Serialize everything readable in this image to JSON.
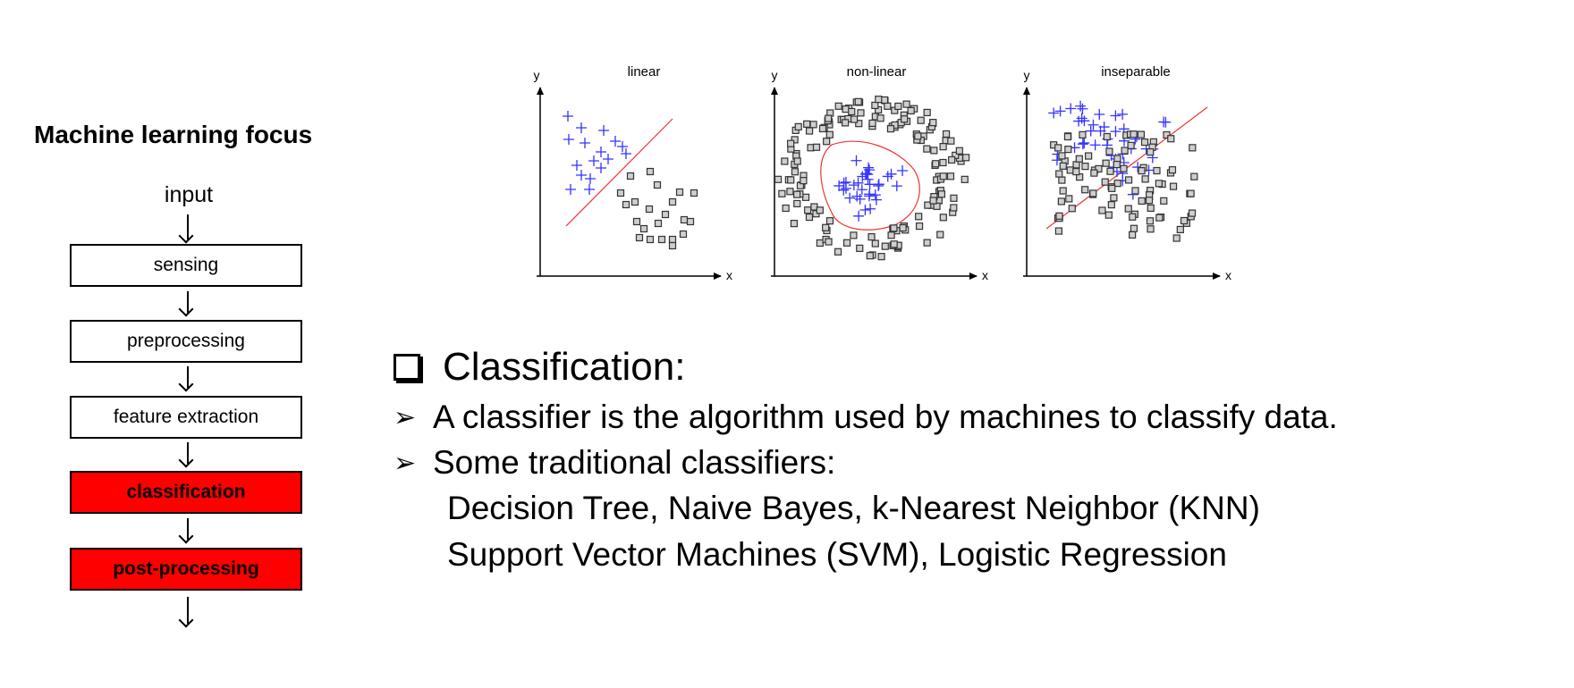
{
  "pipeline": {
    "title": "Machine learning focus",
    "input_label": "input",
    "stages": [
      {
        "label": "sensing",
        "highlighted": false
      },
      {
        "label": "preprocessing",
        "highlighted": false
      },
      {
        "label": "feature extraction",
        "highlighted": false
      },
      {
        "label": "classification",
        "highlighted": true
      },
      {
        "label": "post-processing",
        "highlighted": true
      }
    ],
    "highlight_color": "#ff0000"
  },
  "plots": {
    "x_axis_label": "x",
    "y_axis_label": "y",
    "titles": [
      "linear",
      "non-linear",
      "inseparable"
    ],
    "plus_color": "#3333ff",
    "square_color": "#333333",
    "boundary_color": "#ee3333"
  },
  "classification": {
    "heading": "Classification:",
    "bullets": [
      "A classifier is the algorithm used by machines to classify data.",
      "Some traditional classifiers:"
    ],
    "classifier_lines": [
      "Decision Tree, Naive Bayes, k-Nearest Neighbor (KNN)",
      "Support Vector Machines (SVM), Logistic Regression"
    ]
  }
}
